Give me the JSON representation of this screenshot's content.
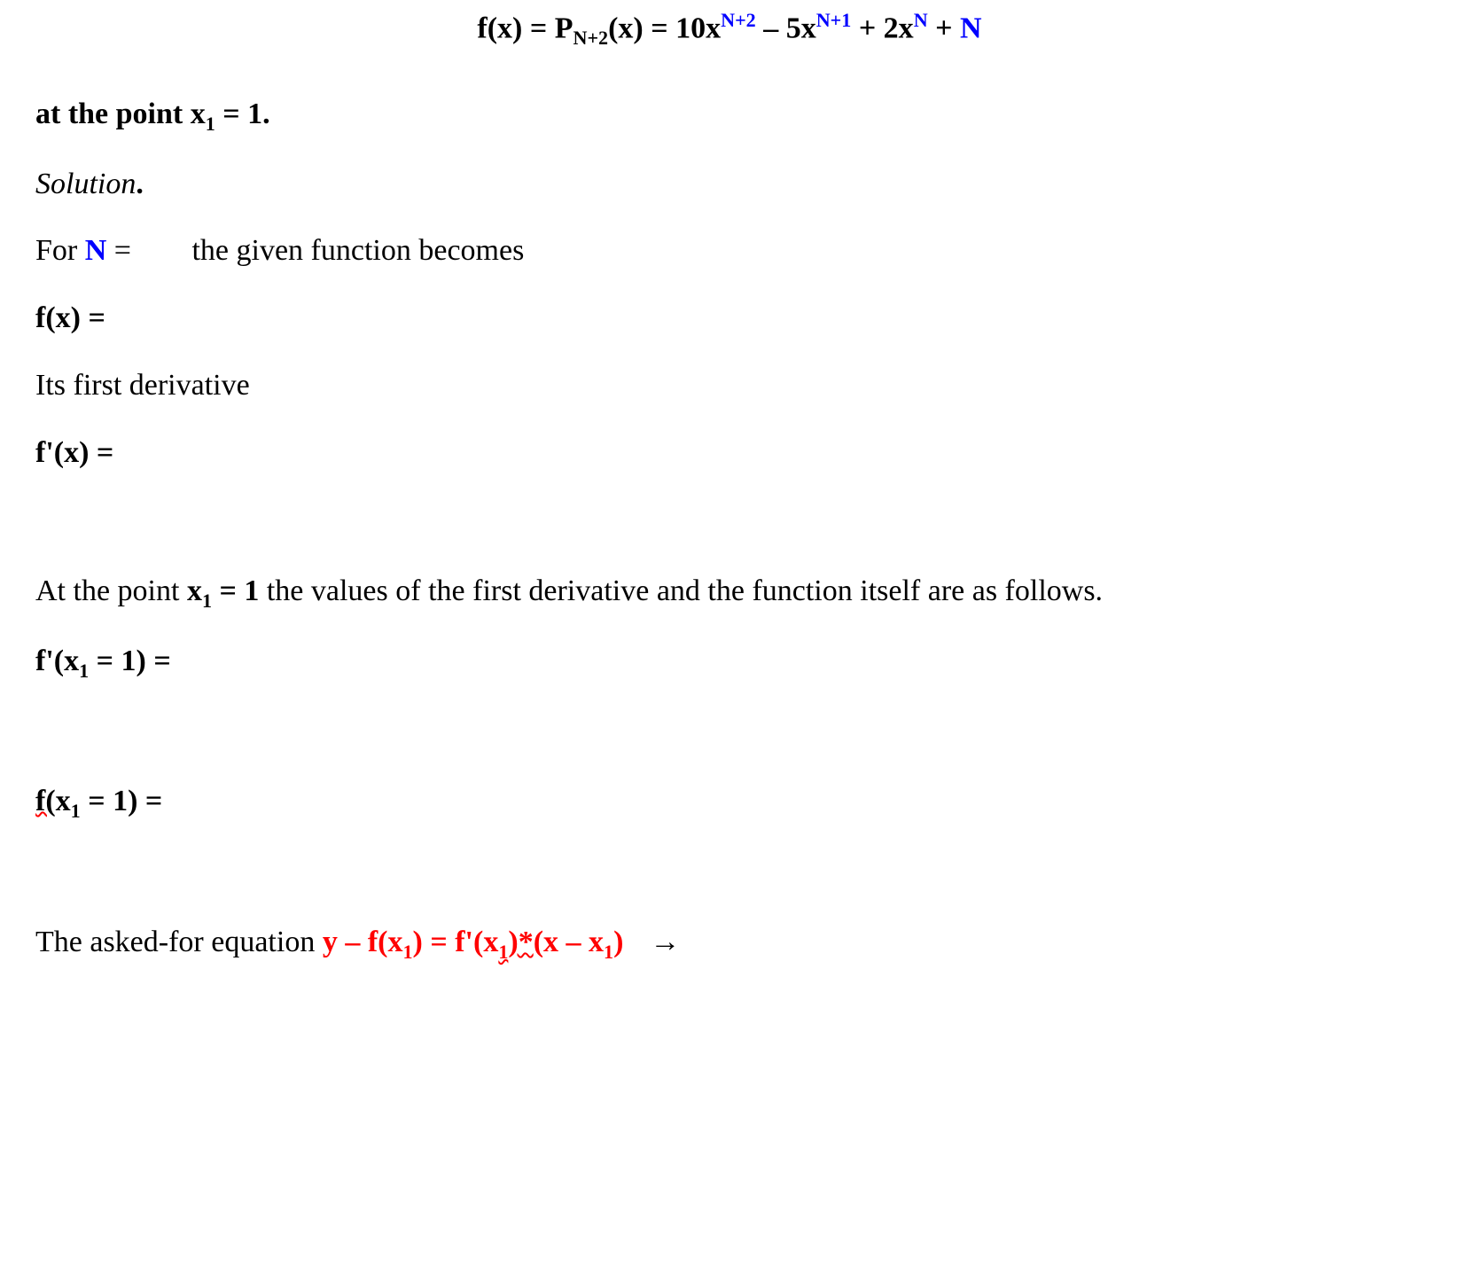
{
  "colors": {
    "text": "#000000",
    "blue": "#0000ff",
    "red": "#ff0000",
    "underline": "#ff0000",
    "background": "#ffffff"
  },
  "typography": {
    "font_family": "Times New Roman",
    "base_fontsize_pt": 26,
    "sub_sup_scale": 0.65
  },
  "eq1": {
    "lhs1_a": "f(x) = P",
    "lhs1_sub": "N+2",
    "lhs1_b": "(x) = 10x",
    "t1_exp": "N+2",
    "t2_a": " – 5x",
    "t2_exp": "N+1",
    "t3_a": " + 2x",
    "t3_exp": "N",
    "t4_a": " + ",
    "t4_N": "N"
  },
  "p_point": {
    "a": "at the point x",
    "sub": "1",
    "b": " = 1."
  },
  "p_solution": "Solution",
  "p_solution_dot": ".",
  "p_forN": {
    "a": "For ",
    "N": "N",
    "b": " = ",
    "c": "the given function becomes"
  },
  "p_fx": "f(x) = ",
  "p_firstderiv": "Its first derivative",
  "p_fpx": "f'(x) = ",
  "p_atpoint": {
    "a": "At the point ",
    "b": "x",
    "sub": "1",
    "c": " = 1",
    "d": " the values of the first derivative and the function itself are as follows."
  },
  "p_fpx1": {
    "a": "f'(x",
    "sub": "1",
    "b": " = 1) = "
  },
  "p_fx1": {
    "a": "f(",
    "b": "x",
    "sub": "1",
    "c": " = 1) = "
  },
  "p_final": {
    "a": "The asked-for equation   ",
    "y": "y",
    "b": " – f(x",
    "sub1": "1",
    "c": ") = f'(x",
    "sub2": "1",
    "d": ")",
    "e": "*",
    "f": "(x – x",
    "sub3": "1",
    "g": ")",
    "arrow": "→"
  }
}
